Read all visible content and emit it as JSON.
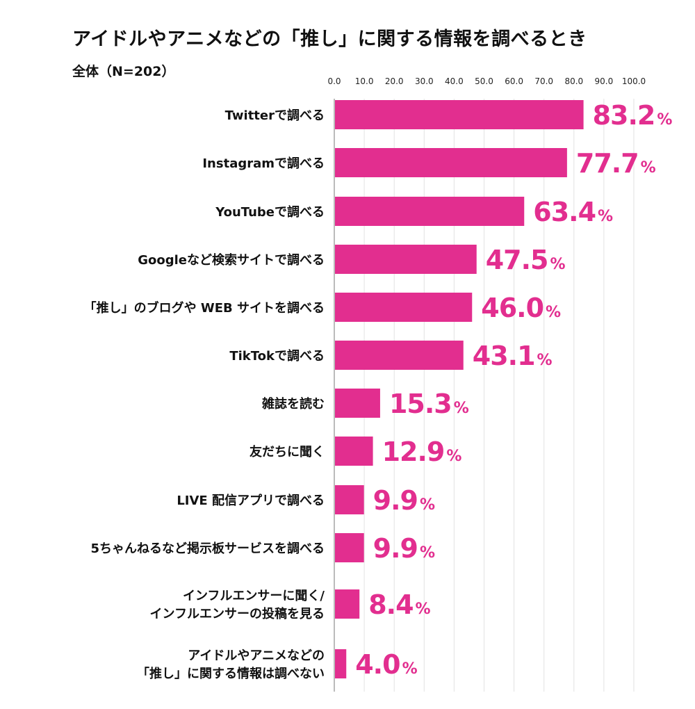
{
  "chart_data": {
    "type": "bar",
    "orientation": "horizontal",
    "title": "アイドルやアニメなどの「推し」に関する情報を調べるとき",
    "subtitle": "全体（N=202）",
    "xlim": [
      0,
      100
    ],
    "ticks": [
      "0.0",
      "10.0",
      "20.0",
      "30.0",
      "40.0",
      "50.0",
      "60.0",
      "70.0",
      "80.0",
      "90.0",
      "100.0"
    ],
    "tick_values": [
      0,
      10,
      20,
      30,
      40,
      50,
      60,
      70,
      80,
      90,
      100
    ],
    "grid": true,
    "unit_suffix": "%",
    "bar_color": "#E22E8F",
    "categories": [
      [
        "Twitterで調べる"
      ],
      [
        "Instagramで調べる"
      ],
      [
        "YouTubeで調べる"
      ],
      [
        "Googleなど検索サイトで調べる"
      ],
      [
        "「推し」のブログや WEB サイトを調べる"
      ],
      [
        "TikTokで調べる"
      ],
      [
        "雑誌を読む"
      ],
      [
        "友だちに聞く"
      ],
      [
        "LIVE 配信アプリで調べる"
      ],
      [
        "5ちゃんねるなど掲示板サービスを調べる"
      ],
      [
        "インフルエンサーに聞く/",
        "インフルエンサーの投稿を見る"
      ],
      [
        "アイドルやアニメなどの",
        "「推し」に関する情報は調べない"
      ]
    ],
    "values": [
      83.2,
      77.7,
      63.4,
      47.5,
      46.0,
      43.1,
      15.3,
      12.9,
      9.9,
      9.9,
      8.4,
      4.0
    ],
    "value_labels": [
      "83.2",
      "77.7",
      "63.4",
      "47.5",
      "46.0",
      "43.1",
      "15.3",
      "12.9",
      "9.9",
      "9.9",
      "8.4",
      "4.0"
    ]
  }
}
